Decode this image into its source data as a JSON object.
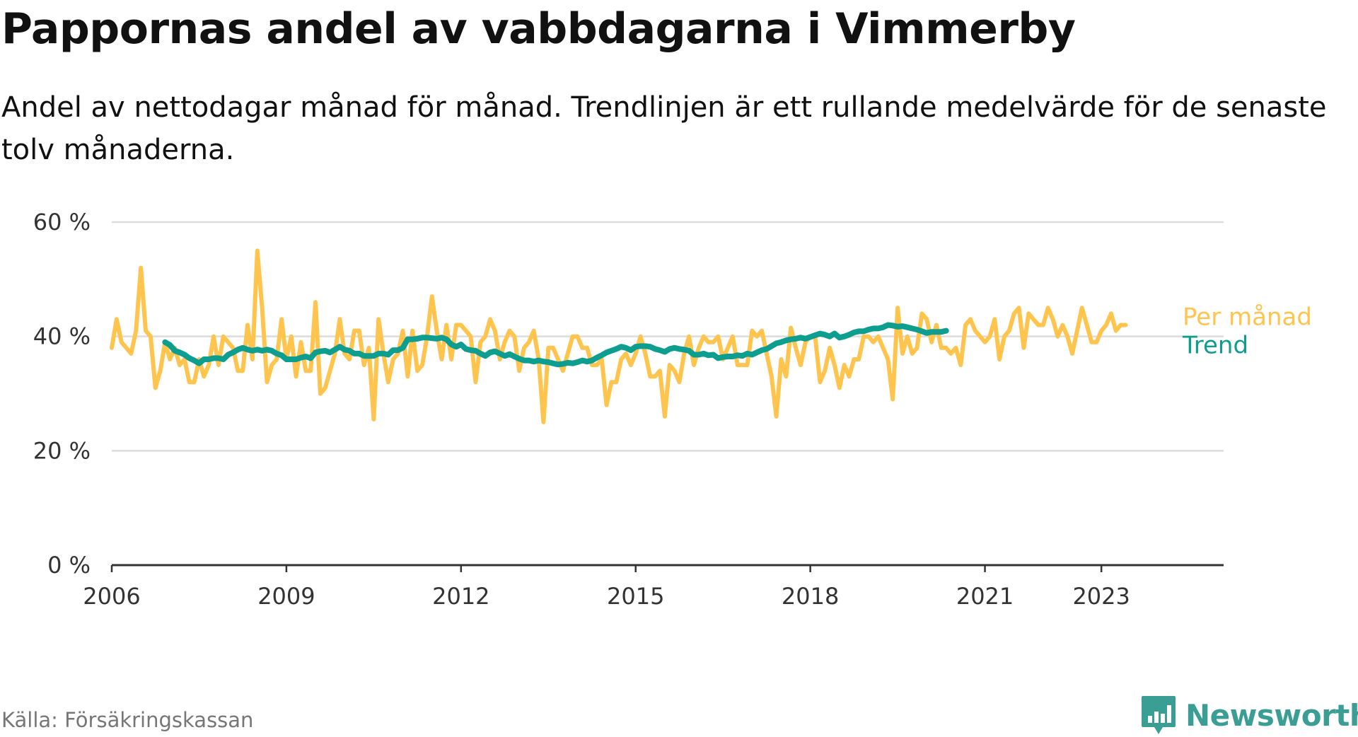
{
  "title": "Pappornas andel av vabbdagarna i Vimmerby",
  "subtitle": "Andel av nettodagar månad för månad. Trendlinjen är ett rullande medelvärde för de senaste tolv månaderna.",
  "source": "Källa: Försäkringskassan",
  "brand": {
    "name": "Newsworthy",
    "logo_icon": "chart-bubble-icon",
    "color": "#3b9e94"
  },
  "chart_data": {
    "type": "line",
    "xlim": [
      2006.0,
      2025.1
    ],
    "ylim": [
      0,
      60
    ],
    "y_ticks": [
      {
        "value": 0,
        "label": "0 %"
      },
      {
        "value": 20,
        "label": "20 %"
      },
      {
        "value": 40,
        "label": "40 %"
      },
      {
        "value": 60,
        "label": "60 %"
      }
    ],
    "x_ticks": [
      {
        "value": 2006,
        "label": "2006"
      },
      {
        "value": 2009,
        "label": "2009"
      },
      {
        "value": 2012,
        "label": "2012"
      },
      {
        "value": 2015,
        "label": "2015"
      },
      {
        "value": 2018,
        "label": "2018"
      },
      {
        "value": 2021,
        "label": "2021"
      },
      {
        "value": 2023,
        "label": "2023"
      }
    ],
    "grid": "horizontal",
    "legend": "inline-right",
    "series": [
      {
        "name": "Per månad",
        "color": "#ffc44d",
        "x_start": 2006.0,
        "step": 0.0833333,
        "values": [
          38.0,
          43.0,
          39.0,
          38.0,
          37.0,
          41.0,
          52.0,
          41.0,
          40.0,
          31.0,
          34.0,
          39.0,
          36.0,
          38.0,
          35.0,
          36.0,
          32.0,
          32.0,
          36.0,
          33.0,
          35.0,
          40.0,
          35.0,
          40.0,
          39.0,
          38.0,
          34.0,
          34.0,
          42.0,
          36.0,
          55.0,
          45.0,
          32.0,
          35.0,
          36.0,
          43.0,
          36.0,
          40.0,
          33.0,
          39.0,
          34.0,
          34.0,
          46.0,
          30.0,
          31.0,
          34.0,
          37.0,
          43.0,
          37.0,
          36.0,
          41.0,
          41.0,
          35.0,
          38.0,
          25.5,
          43.0,
          37.0,
          32.0,
          36.0,
          37.0,
          41.0,
          33.0,
          41.0,
          34.0,
          35.0,
          40.0,
          47.0,
          41.0,
          36.0,
          42.0,
          36.0,
          42.0,
          42.0,
          41.0,
          40.0,
          32.0,
          39.0,
          40.0,
          43.0,
          41.0,
          36.0,
          39.0,
          41.0,
          40.0,
          34.0,
          38.0,
          39.0,
          41.0,
          36.0,
          25.0,
          38.0,
          38.0,
          36.0,
          34.0,
          37.0,
          40.0,
          40.0,
          38.0,
          38.0,
          35.0,
          35.0,
          36.0,
          28.0,
          32.0,
          32.0,
          36.0,
          37.0,
          35.0,
          37.0,
          40.0,
          37.0,
          33.0,
          33.0,
          34.0,
          26.0,
          35.0,
          34.0,
          32.0,
          37.0,
          40.0,
          35.0,
          38.0,
          40.0,
          39.0,
          39.0,
          40.0,
          36.0,
          38.0,
          40.0,
          35.0,
          35.0,
          35.0,
          41.0,
          40.0,
          41.0,
          37.0,
          33.0,
          26.0,
          36.0,
          33.0,
          41.5,
          38.0,
          35.0,
          39.0,
          40.0,
          40.0,
          32.0,
          34.0,
          38.0,
          35.0,
          31.0,
          35.0,
          33.0,
          36.0,
          36.0,
          40.0,
          40.0,
          39.0,
          40.0,
          38.0,
          36.0,
          29.0,
          45.0,
          37.0,
          40.0,
          37.0,
          38.0,
          44.0,
          43.0,
          39.0,
          42.0,
          38.0,
          38.0,
          37.0,
          38.0,
          35.0,
          42.0,
          43.0,
          41.0,
          40.0,
          39.0,
          40.0,
          43.0,
          36.0,
          40.0,
          41.0,
          44.0,
          45.0,
          38.0,
          44.0,
          43.0,
          42.0,
          42.0,
          45.0,
          43.0,
          40.0,
          42.0,
          40.0,
          37.0,
          41.0,
          45.0,
          42.0,
          39.0,
          39.0,
          41.0,
          42.0,
          44.0,
          41.0,
          42.0,
          42.0
        ]
      },
      {
        "name": "Trend",
        "color": "#0e9e8f",
        "x_start": 2006.9167,
        "step": 0.0833333,
        "values": [
          39.0,
          38.5,
          37.5,
          37.2,
          36.8,
          36.2,
          35.8,
          35.3,
          36.0,
          36.0,
          36.2,
          36.2,
          36.0,
          36.8,
          37.2,
          37.7,
          38.0,
          37.7,
          37.5,
          37.7,
          37.5,
          37.7,
          37.5,
          37.0,
          36.7,
          36.0,
          36.0,
          36.0,
          36.3,
          36.5,
          36.2,
          37.2,
          37.4,
          37.5,
          37.2,
          37.7,
          38.2,
          37.7,
          37.5,
          37.0,
          37.0,
          36.6,
          36.6,
          36.6,
          37.0,
          37.0,
          36.8,
          37.6,
          37.6,
          38.0,
          39.5,
          39.5,
          39.6,
          39.8,
          39.8,
          39.7,
          39.6,
          39.8,
          39.5,
          38.6,
          38.2,
          38.6,
          37.8,
          37.6,
          37.5,
          37.0,
          36.6,
          37.2,
          37.4,
          37.0,
          36.6,
          36.9,
          36.5,
          36.1,
          35.8,
          35.8,
          35.6,
          35.8,
          35.6,
          35.5,
          35.3,
          35.1,
          35.2,
          35.4,
          35.3,
          35.5,
          35.8,
          35.6,
          35.8,
          36.3,
          36.7,
          37.2,
          37.5,
          37.8,
          38.2,
          38.0,
          37.6,
          38.2,
          38.3,
          38.3,
          38.2,
          37.8,
          37.6,
          37.3,
          37.8,
          38.0,
          37.8,
          37.7,
          37.5,
          36.8,
          36.8,
          37.0,
          36.7,
          36.8,
          36.2,
          36.4,
          36.5,
          36.5,
          36.7,
          36.6,
          37.0,
          36.8,
          37.2,
          37.6,
          37.8,
          38.3,
          38.8,
          39.0,
          39.3,
          39.5,
          39.6,
          39.8,
          39.6,
          39.9,
          40.2,
          40.5,
          40.3,
          40.0,
          40.5,
          39.8,
          40.0,
          40.3,
          40.7,
          40.9,
          40.9,
          41.2,
          41.4,
          41.4,
          41.6,
          42.0,
          41.9,
          41.7,
          41.8,
          41.6,
          41.4,
          41.2,
          40.9,
          40.6,
          40.8,
          40.8,
          40.8,
          41.0
        ]
      }
    ]
  }
}
